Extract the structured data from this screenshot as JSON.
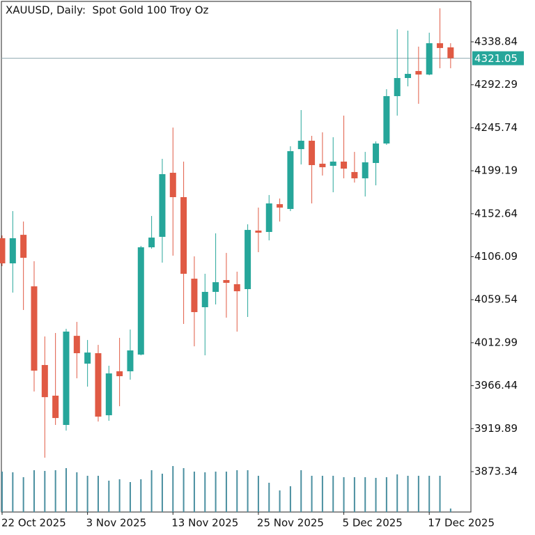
{
  "chart_data": {
    "type": "candlestick",
    "title": "XAUUSD, Daily:  Spot Gold 100 Troy Oz",
    "categories": [
      "22 Oct 2025",
      null,
      null,
      null,
      null,
      null,
      null,
      null,
      "3 Nov 2025",
      null,
      null,
      null,
      null,
      null,
      null,
      null,
      "13 Nov 2025",
      null,
      null,
      null,
      null,
      null,
      null,
      null,
      "25 Nov 2025",
      null,
      null,
      null,
      null,
      null,
      null,
      null,
      "5 Dec 2025",
      null,
      null,
      null,
      null,
      null,
      null,
      null,
      "17 Dec 2025",
      null,
      null
    ],
    "open": [
      4126.1,
      4098.9,
      4129.8,
      4074.0,
      3988.8,
      3955.6,
      3923.9,
      4020.4,
      3990.3,
      4001.6,
      3934.4,
      3982.0,
      3982.0,
      4000.1,
      4116.3,
      4127.6,
      4197.0,
      4170.6,
      4082.3,
      4051.4,
      4068.0,
      4080.8,
      4076.3,
      4071.0,
      4134.4,
      4132.9,
      4163.0,
      4157.8,
      4222.6,
      4231.7,
      4206.8,
      4204.5,
      4209.1,
      4197.8,
      4191.0,
      4207.6,
      4228.7,
      4280.0,
      4299.6,
      4307.2,
      4303.4,
      4337.3,
      4332.8
    ],
    "high": [
      4129.1,
      4155.5,
      4144.2,
      4101.2,
      4019.7,
      4023.5,
      4028.0,
      4035.5,
      4015.9,
      4010.6,
      3988.0,
      4018.2,
      4027.2,
      4117.8,
      4150.2,
      4212.1,
      4246.0,
      4209.1,
      4106.5,
      4087.6,
      4131.4,
      4110.2,
      4089.9,
      4141.2,
      4159.3,
      4172.9,
      4169.1,
      4225.7,
      4264.9,
      4237.0,
      4240.8,
      4235.5,
      4258.9,
      4219.6,
      4219.6,
      4231.0,
      4287.5,
      4352.4,
      4350.9,
      4333.6,
      4348.7,
      4375.1,
      4337.3
    ],
    "low": [
      4095.9,
      4067.2,
      4048.4,
      3960.1,
      3888.4,
      3923.9,
      3917.8,
      3974.4,
      3965.4,
      3927.6,
      3928.4,
      3944.2,
      3972.9,
      3999.3,
      4114.8,
      4099.7,
      4107.2,
      4033.3,
      4009.1,
      3999.3,
      4054.4,
      4040.1,
      4025.0,
      4040.8,
      4111.0,
      4123.8,
      4144.2,
      4155.5,
      4206.0,
      4163.8,
      4194.0,
      4175.9,
      4191.0,
      4186.4,
      4171.3,
      4183.4,
      4227.2,
      4258.9,
      4290.6,
      4271.7,
      4302.6,
      4310.2,
      4310.2
    ],
    "close": [
      4098.9,
      4126.1,
      4104.9,
      3982.7,
      3954.0,
      3931.4,
      4025.0,
      4001.6,
      4002.3,
      3932.9,
      3979.7,
      3976.7,
      4004.6,
      4116.3,
      4126.8,
      4195.5,
      4170.6,
      4087.6,
      4046.1,
      4068.0,
      4078.5,
      4077.8,
      4068.7,
      4135.1,
      4132.1,
      4163.8,
      4159.3,
      4220.4,
      4231.7,
      4205.3,
      4203.0,
      4209.1,
      4201.5,
      4191.0,
      4208.3,
      4228.7,
      4280.0,
      4299.6,
      4304.1,
      4303.4,
      4337.3,
      4332.1,
      4321.05
    ],
    "volumes": [
      58,
      57,
      50,
      60,
      59,
      60,
      63,
      57,
      52,
      52,
      45,
      47,
      43,
      47,
      60,
      55,
      66,
      63,
      58,
      57,
      58,
      58,
      60,
      60,
      52,
      42,
      31,
      37,
      60,
      52,
      52,
      52,
      50,
      50,
      50,
      49,
      50,
      54,
      52,
      52,
      52,
      52,
      5
    ],
    "up_color": "#26a69a",
    "down_color": "#e05a44",
    "volume_color": "#4a8fa0",
    "last_price": 4321.05,
    "ylim": [
      3829.6,
      4382.6
    ],
    "yticks": [
      3873.34,
      3919.89,
      3966.44,
      4012.99,
      4059.54,
      4106.09,
      4152.64,
      4199.19,
      4245.74,
      4292.29,
      4338.84
    ]
  }
}
